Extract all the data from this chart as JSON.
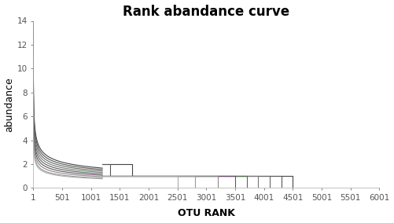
{
  "title": "Rank abandance curve",
  "xlabel": "OTU RANK",
  "ylabel": "abundance",
  "xlim": [
    1,
    6001
  ],
  "ylim": [
    0,
    14
  ],
  "yticks": [
    0,
    2,
    4,
    6,
    8,
    10,
    12,
    14
  ],
  "xticks": [
    1,
    501,
    1001,
    1501,
    2001,
    2501,
    3001,
    3501,
    4001,
    4501,
    5001,
    5501,
    6001
  ],
  "curve_params": [
    {
      "a": 14.0,
      "b": 0.3,
      "max_rank": 4500,
      "color": "#444444",
      "lw": 0.8
    },
    {
      "a": 13.0,
      "b": 0.3,
      "max_rank": 4300,
      "color": "#555555",
      "lw": 0.8
    },
    {
      "a": 12.0,
      "b": 0.3,
      "max_rank": 4100,
      "color": "#666666",
      "lw": 0.8
    },
    {
      "a": 11.0,
      "b": 0.3,
      "max_rank": 3900,
      "color": "#777777",
      "lw": 0.8
    },
    {
      "a": 10.0,
      "b": 0.3,
      "max_rank": 3700,
      "color": "#4a6e4a",
      "lw": 0.8
    },
    {
      "a": 9.0,
      "b": 0.3,
      "max_rank": 3500,
      "color": "#6e4a6e",
      "lw": 0.8
    },
    {
      "a": 8.0,
      "b": 0.3,
      "max_rank": 3200,
      "color": "#888888",
      "lw": 0.8
    },
    {
      "a": 7.0,
      "b": 0.3,
      "max_rank": 2800,
      "color": "#999999",
      "lw": 0.8
    },
    {
      "a": 6.5,
      "b": 0.3,
      "max_rank": 2500,
      "color": "#aaaaaa",
      "lw": 0.8
    }
  ],
  "background_color": "#ffffff",
  "title_fontsize": 12,
  "label_fontsize": 9,
  "tick_fontsize": 7.5
}
